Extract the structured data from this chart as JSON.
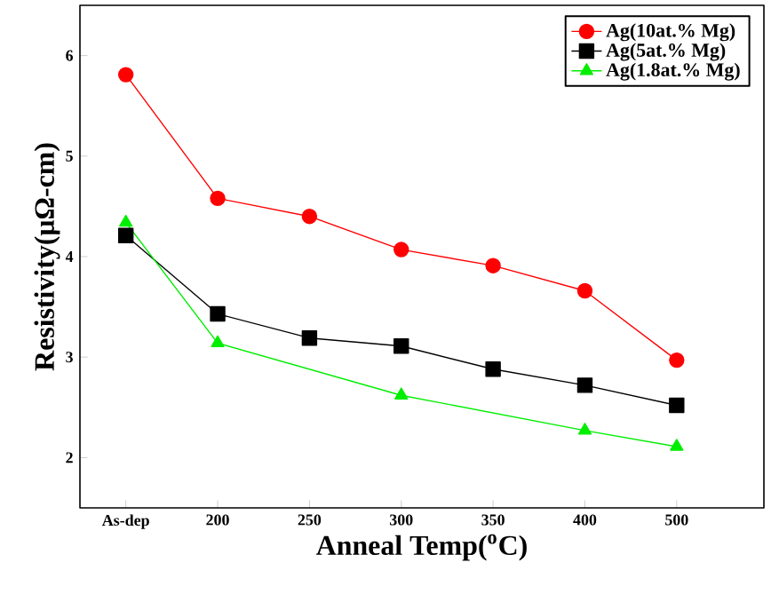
{
  "chart_data": {
    "type": "line",
    "xlabel": "Anneal Temp($^{o}$C)",
    "ylabel": "Resistivity(μΩ-cm)",
    "categories": [
      "As-dep",
      "200",
      "250",
      "300",
      "350",
      "400",
      "500"
    ],
    "ylim": [
      1.5,
      6.5
    ],
    "yticks": [
      2,
      3,
      4,
      5,
      6
    ],
    "legend": "top right",
    "line_style": "solid",
    "series": [
      {
        "name": "Ag(10at.% Mg)",
        "color": "#ff0000",
        "marker": "circle",
        "values": [
          5.81,
          4.58,
          4.4,
          4.07,
          3.91,
          3.66,
          2.97
        ]
      },
      {
        "name": "Ag(5at.% Mg)",
        "color": "#000000",
        "marker": "square",
        "values": [
          4.21,
          3.43,
          3.19,
          3.11,
          2.88,
          2.72,
          2.52
        ]
      },
      {
        "name": "Ag(1.8at.% Mg)",
        "color": "#00ee00",
        "marker": "triangle",
        "values": [
          4.34,
          3.14,
          null,
          2.62,
          null,
          2.27,
          2.11
        ]
      }
    ]
  }
}
